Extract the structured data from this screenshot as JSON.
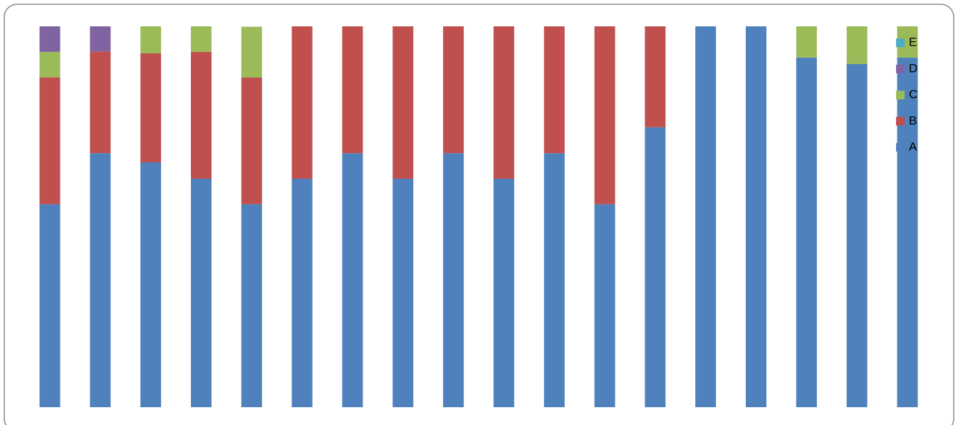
{
  "chart_data": {
    "type": "stacked_bar_100",
    "categories": [
      null,
      null,
      null,
      null,
      null,
      null,
      null,
      null,
      null,
      null,
      null,
      null,
      null,
      null,
      null,
      null,
      null,
      null
    ],
    "ylim": [
      0,
      100
    ],
    "legend": "right",
    "series": [
      {
        "name": "A",
        "color": "#4f81bd",
        "values": [
          53.3,
          66.7,
          64.3,
          60,
          53.3,
          60,
          66.7,
          60,
          66.7,
          60,
          66.7,
          53.3,
          73.5,
          100,
          100,
          91.8,
          90.1,
          91.8
        ]
      },
      {
        "name": "B",
        "color": "#c0504d",
        "values": [
          33.3,
          26.7,
          28.6,
          33.3,
          33.3,
          40,
          33.3,
          40,
          33.3,
          40,
          33.3,
          46.7,
          26.5,
          0,
          0,
          0,
          0,
          0
        ]
      },
      {
        "name": "C",
        "color": "#9bbb59",
        "values": [
          6.7,
          0,
          7.1,
          6.7,
          13.3,
          0,
          0,
          0,
          0,
          0,
          0,
          0,
          0,
          0,
          0,
          8.2,
          9.9,
          8.2
        ]
      },
      {
        "name": "D",
        "color": "#8064a2",
        "values": [
          6.7,
          6.6,
          0,
          0,
          0,
          0,
          0,
          0,
          0,
          0,
          0,
          0,
          0,
          0,
          0,
          0,
          0,
          0
        ]
      },
      {
        "name": "E",
        "color": "#4bacc6",
        "values": [
          0,
          0,
          0,
          0,
          0,
          0,
          0,
          0,
          0,
          0,
          0,
          0,
          0,
          0,
          0,
          0,
          0,
          0
        ]
      }
    ]
  }
}
